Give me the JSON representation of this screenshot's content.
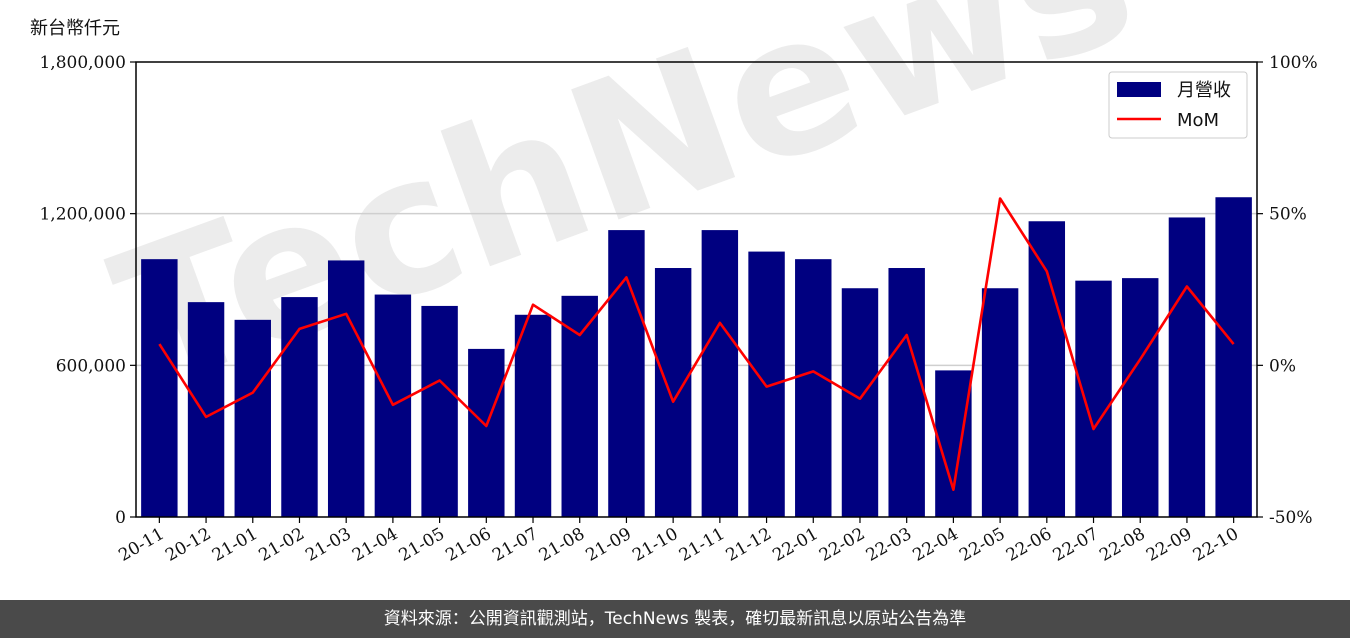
{
  "chart_data": {
    "type": "bar",
    "y_unit_label": "新台幣仟元",
    "categories": [
      "20-11",
      "20-12",
      "21-01",
      "21-02",
      "21-03",
      "21-04",
      "21-05",
      "21-06",
      "21-07",
      "21-08",
      "21-09",
      "21-10",
      "21-11",
      "21-12",
      "22-01",
      "22-02",
      "22-03",
      "22-04",
      "22-05",
      "22-06",
      "22-07",
      "22-08",
      "22-09",
      "22-10"
    ],
    "series": [
      {
        "name": "月營收",
        "type": "bar",
        "axis": "left",
        "color": "#000080",
        "values": [
          1020000,
          850000,
          780000,
          870000,
          1015000,
          880000,
          835000,
          665000,
          800000,
          875000,
          1135000,
          985000,
          1135000,
          1050000,
          1020000,
          905000,
          985000,
          580000,
          905000,
          1170000,
          935000,
          945000,
          1185000,
          1265000
        ]
      },
      {
        "name": "MoM",
        "type": "line",
        "axis": "right",
        "color": "#ff0000",
        "values": [
          7,
          -17,
          -9,
          12,
          17,
          -13,
          -5,
          -20,
          20,
          10,
          29,
          -12,
          14,
          -7,
          -2,
          -11,
          10,
          -41,
          55,
          31,
          -21,
          2,
          26,
          7
        ]
      }
    ],
    "y_left": {
      "min": 0,
      "max": 1800000,
      "ticks": [
        "0",
        "600,000",
        "1,200,000",
        "1,800,000"
      ],
      "tick_values": [
        0,
        600000,
        1200000,
        1800000
      ]
    },
    "y_right": {
      "min": -50,
      "max": 100,
      "ticks": [
        "-50%",
        "0%",
        "50%",
        "100%"
      ],
      "tick_values": [
        -50,
        0,
        50,
        100
      ]
    },
    "grid": "horizontal",
    "legend_position": "top-right"
  },
  "watermark": {
    "text": "TechNews"
  },
  "footer": {
    "text": "資料來源：公開資訊觀測站，TechNews 製表，確切最新訊息以原站公告為準"
  }
}
